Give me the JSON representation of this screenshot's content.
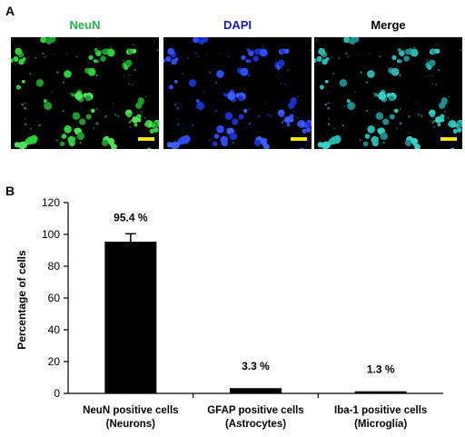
{
  "panel_a": {
    "label": "A",
    "images": [
      {
        "title": "NeuN",
        "title_color": "#27b34a",
        "cell_colors": [
          "#1e9a2a",
          "#2ed03a",
          "#4ee05a"
        ]
      },
      {
        "title": "DAPI",
        "title_color": "#1a1ab4",
        "cell_colors": [
          "#1a2fcc",
          "#2d4cff",
          "#3c5eff"
        ]
      },
      {
        "title": "Merge",
        "title_color": "#000000",
        "cell_colors": [
          "#1d8c8c",
          "#2ab7b0",
          "#35d0c4"
        ]
      }
    ],
    "background_color": "#000000",
    "scalebar_color": "#f2e600"
  },
  "panel_b": {
    "label": "B"
  },
  "chart_data": {
    "type": "bar",
    "categories": [
      [
        "NeuN positive cells",
        "(Neurons)"
      ],
      [
        "GFAP positive cells",
        "(Astrocytes)"
      ],
      [
        "Iba-1 positive cells",
        "(Microglia)"
      ]
    ],
    "values": [
      95.4,
      3.3,
      1.3
    ],
    "errors": [
      5,
      0,
      0
    ],
    "data_labels": [
      "95.4 %",
      "3.3 %",
      "1.3 %"
    ],
    "ylabel": "Percentage of cells",
    "xlabel": "",
    "ylim": [
      0,
      120
    ],
    "yticks": [
      0,
      20,
      40,
      60,
      80,
      100,
      120
    ],
    "bar_color": "#000000",
    "grid": false
  }
}
